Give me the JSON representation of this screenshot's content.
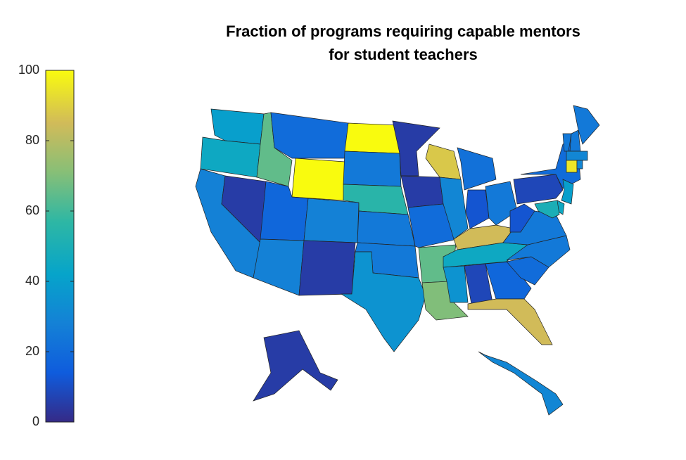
{
  "chart_data": {
    "type": "choropleth",
    "title": [
      "Fraction of programs requiring capable mentors",
      "for student teachers"
    ],
    "clim": [
      0,
      100
    ],
    "cticks": [
      0,
      20,
      40,
      60,
      80,
      100
    ],
    "values": [
      40,
      45,
      28,
      5,
      65,
      20,
      100,
      18,
      28,
      28,
      5,
      100,
      25,
      55,
      25,
      25,
      35,
      5,
      5,
      20,
      65,
      70,
      88,
      30,
      22,
      12,
      25,
      85,
      45,
      35,
      8,
      18,
      85,
      20,
      25,
      25,
      12,
      8,
      20,
      25,
      25,
      25,
      30,
      95,
      30,
      40,
      45,
      50,
      5,
      30
    ]
  }
}
